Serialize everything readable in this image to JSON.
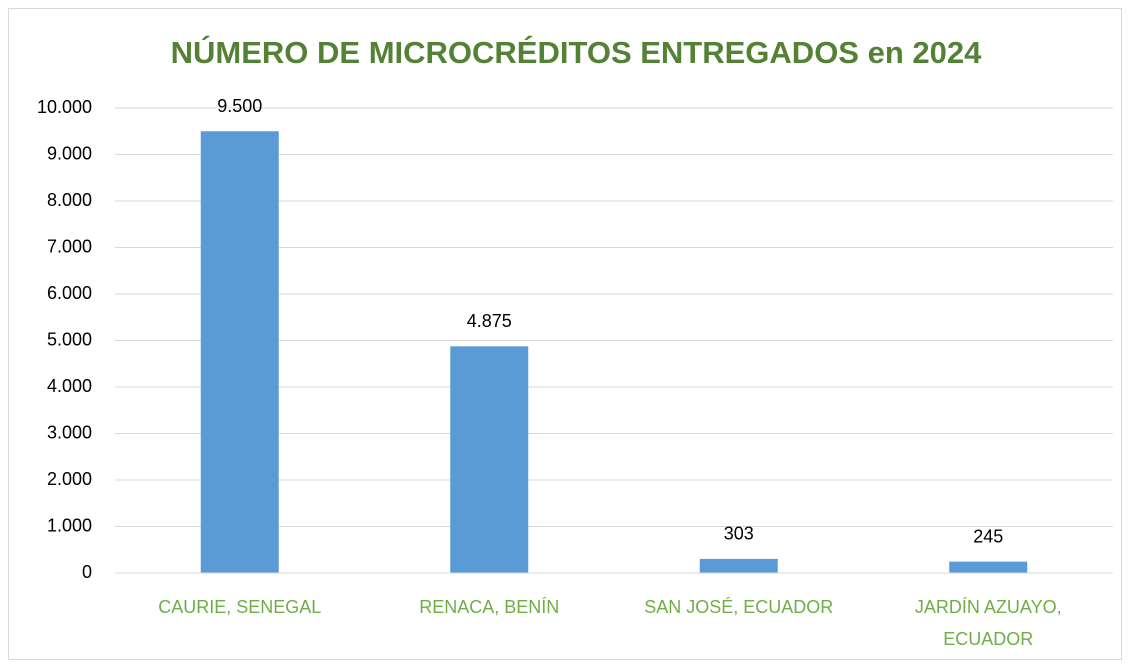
{
  "chart_data": {
    "type": "bar",
    "title": "NÚMERO DE MICROCRÉDITOS ENTREGADOS en 2024",
    "categories": [
      "CAURIE, SENEGAL",
      "RENACA, BENÍN",
      "SAN JOSÉ, ECUADOR",
      "JARDÍN AZUAYO, ECUADOR"
    ],
    "values": [
      9500,
      4875,
      303,
      245
    ],
    "value_labels": [
      "9.500",
      "4.875",
      "303",
      "245"
    ],
    "color": "#5b9bd5",
    "ylim": [
      0,
      10000
    ],
    "yticks": [
      0,
      {
        "value": 1000,
        "label": "1.000"
      },
      {
        "value": 2000,
        "label": "2.000"
      },
      {
        "value": 3000,
        "label": "3.000"
      },
      {
        "value": 4000,
        "label": "4.000"
      },
      {
        "value": 5000,
        "label": "5.000"
      },
      {
        "value": 6000,
        "label": "6.000"
      },
      {
        "value": 7000,
        "label": "7.000"
      },
      {
        "value": 8000,
        "label": "8.000"
      },
      {
        "value": 9000,
        "label": "9.000"
      },
      {
        "value": 10000,
        "label": "10.000"
      }
    ],
    "grid": true
  }
}
